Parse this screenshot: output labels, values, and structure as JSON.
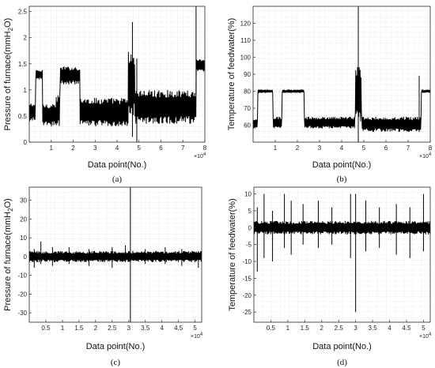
{
  "chart_data": [
    {
      "panel": "(a)",
      "type": "line",
      "xlabel": "Data point(No.)",
      "ylabel": "Pressure of furnace(mmH2O)",
      "ylabel_main": "Pressure of furnace(mmH",
      "ylabel_sub": "2",
      "ylabel_tail": "O)",
      "x_multiplier": "×10",
      "x_multiplier_exp": "4",
      "xlim": [
        0,
        8
      ],
      "ylim": [
        0,
        2.6
      ],
      "xticks": [
        "1",
        "2",
        "3",
        "4",
        "5",
        "6",
        "7",
        "8"
      ],
      "yticks": [
        "0",
        "0.5",
        "1",
        "1.5",
        "2",
        "2.5"
      ],
      "xtick_values": [
        1,
        2,
        3,
        4,
        5,
        6,
        7,
        8
      ],
      "ytick_values": [
        0,
        0.5,
        1,
        1.5,
        2,
        2.5
      ],
      "grid": true,
      "segments": [
        {
          "x": [
            0,
            0.28
          ],
          "low": 0.4,
          "high": 0.75
        },
        {
          "x": [
            0.28,
            0.6
          ],
          "low": 1.2,
          "high": 1.38
        },
        {
          "x": [
            0.6,
            1.2
          ],
          "low": 0.3,
          "high": 0.75
        },
        {
          "x": [
            1.2,
            1.4
          ],
          "low": 0.3,
          "high": 0.9
        },
        {
          "x": [
            1.4,
            2.3
          ],
          "low": 1.1,
          "high": 1.45
        },
        {
          "x": [
            2.3,
            4.5
          ],
          "low": 0.3,
          "high": 0.85
        },
        {
          "x": [
            4.5,
            4.8
          ],
          "low": 0.5,
          "high": 1.75
        },
        {
          "x": [
            4.8,
            7.6
          ],
          "low": 0.35,
          "high": 1.0
        },
        {
          "x": [
            7.6,
            8.0
          ],
          "low": 1.35,
          "high": 1.6
        }
      ],
      "spikes": [
        {
          "x": 4.7,
          "low": 0.1,
          "high": 2.3
        },
        {
          "x": 4.9,
          "low": 0.0,
          "high": 1.6
        },
        {
          "x": 7.6,
          "low": 0.9,
          "high": 2.6
        }
      ]
    },
    {
      "panel": "(b)",
      "type": "line",
      "xlabel": "Data point(No.)",
      "ylabel": "Temperature of feedwater(%)",
      "x_multiplier": "×10",
      "x_multiplier_exp": "4",
      "xlim": [
        0,
        8
      ],
      "ylim": [
        50,
        130
      ],
      "xticks": [
        "1",
        "2",
        "3",
        "4",
        "5",
        "6",
        "7",
        "8"
      ],
      "yticks": [
        "60",
        "70",
        "80",
        "90",
        "100",
        "110",
        "120"
      ],
      "xtick_values": [
        1,
        2,
        3,
        4,
        5,
        6,
        7,
        8
      ],
      "ytick_values": [
        60,
        70,
        80,
        90,
        100,
        110,
        120
      ],
      "grid": true,
      "segments": [
        {
          "x": [
            0,
            0.2
          ],
          "low": 58,
          "high": 64
        },
        {
          "x": [
            0.2,
            0.9
          ],
          "low": 79,
          "high": 81
        },
        {
          "x": [
            0.9,
            1.3
          ],
          "low": 58,
          "high": 65
        },
        {
          "x": [
            1.3,
            2.3
          ],
          "low": 79,
          "high": 81
        },
        {
          "x": [
            2.3,
            4.6
          ],
          "low": 58,
          "high": 65
        },
        {
          "x": [
            4.6,
            4.9
          ],
          "low": 62,
          "high": 95
        },
        {
          "x": [
            4.9,
            7.6
          ],
          "low": 56,
          "high": 65
        },
        {
          "x": [
            7.6,
            8.0
          ],
          "low": 79,
          "high": 81
        }
      ],
      "spikes": [
        {
          "x": 4.75,
          "low": 50,
          "high": 130
        },
        {
          "x": 7.5,
          "low": 56,
          "high": 89
        }
      ]
    },
    {
      "panel": "(c)",
      "type": "line",
      "xlabel": "Data point(No.)",
      "ylabel": "Pressure of furnace(mmH2O)",
      "ylabel_main": "Pressure of furnace(mmH",
      "ylabel_sub": "2",
      "ylabel_tail": "O)",
      "x_multiplier": "×10",
      "x_multiplier_exp": "4",
      "xlim": [
        0,
        5.2
      ],
      "ylim": [
        -35,
        37
      ],
      "xticks": [
        "0.5",
        "1",
        "1.5",
        "2",
        "2.5",
        "3",
        "3.5",
        "4",
        "4.5",
        "5"
      ],
      "yticks": [
        "-30",
        "-20",
        "-10",
        "0",
        "10",
        "20",
        "30"
      ],
      "xtick_values": [
        0.5,
        1,
        1.5,
        2,
        2.5,
        3,
        3.5,
        4,
        4.5,
        5
      ],
      "ytick_values": [
        -30,
        -20,
        -10,
        0,
        10,
        20,
        30
      ],
      "grid": true,
      "segments": [
        {
          "x": [
            0,
            5.2
          ],
          "low": -3,
          "high": 3
        }
      ],
      "spikes": [
        {
          "x": 0.15,
          "low": -6,
          "high": 4
        },
        {
          "x": 0.35,
          "low": -4,
          "high": 8
        },
        {
          "x": 0.7,
          "low": -5,
          "high": 5
        },
        {
          "x": 1.2,
          "low": -4,
          "high": 5
        },
        {
          "x": 1.8,
          "low": -5,
          "high": 4
        },
        {
          "x": 2.5,
          "low": -6,
          "high": 5
        },
        {
          "x": 2.9,
          "low": -3,
          "high": 6
        },
        {
          "x": 3.05,
          "low": -35,
          "high": 37
        },
        {
          "x": 3.5,
          "low": -4,
          "high": 4
        },
        {
          "x": 4.1,
          "low": -4,
          "high": 5
        },
        {
          "x": 4.6,
          "low": -5,
          "high": 4
        },
        {
          "x": 5.1,
          "low": -6,
          "high": 3
        }
      ]
    },
    {
      "panel": "(d)",
      "type": "line",
      "xlabel": "Data point(No.)",
      "ylabel": "Temperature of feedwater(%)",
      "x_multiplier": "×10",
      "x_multiplier_exp": "4",
      "xlim": [
        0,
        5.2
      ],
      "ylim": [
        -28,
        12
      ],
      "xticks": [
        "0.5",
        "1",
        "1.5",
        "2",
        "2.5",
        "3",
        "3.5",
        "4",
        "4.5",
        "5"
      ],
      "yticks": [
        "-25",
        "-20",
        "-15",
        "-10",
        "-5",
        "0",
        "5",
        "10"
      ],
      "xtick_values": [
        0.5,
        1,
        1.5,
        2,
        2.5,
        3,
        3.5,
        4,
        4.5,
        5
      ],
      "ytick_values": [
        -25,
        -20,
        -15,
        -10,
        -5,
        0,
        5,
        10
      ],
      "grid": true,
      "segments": [
        {
          "x": [
            0,
            5.2
          ],
          "low": -2,
          "high": 2
        }
      ],
      "spikes": [
        {
          "x": 0.1,
          "low": -13,
          "high": 6
        },
        {
          "x": 0.3,
          "low": -9,
          "high": 10
        },
        {
          "x": 0.55,
          "low": -10,
          "high": 5
        },
        {
          "x": 0.9,
          "low": -6,
          "high": 10
        },
        {
          "x": 1.1,
          "low": -8,
          "high": 8
        },
        {
          "x": 1.45,
          "low": -5,
          "high": 7
        },
        {
          "x": 1.9,
          "low": -6,
          "high": 8
        },
        {
          "x": 2.3,
          "low": -5,
          "high": 6
        },
        {
          "x": 2.85,
          "low": -9,
          "high": 10
        },
        {
          "x": 3.0,
          "low": -25,
          "high": 10
        },
        {
          "x": 3.3,
          "low": -7,
          "high": 8
        },
        {
          "x": 3.7,
          "low": -6,
          "high": 6
        },
        {
          "x": 4.2,
          "low": -8,
          "high": 7
        },
        {
          "x": 4.6,
          "low": -9,
          "high": 6
        },
        {
          "x": 5.0,
          "low": -7,
          "high": 10
        }
      ]
    }
  ]
}
